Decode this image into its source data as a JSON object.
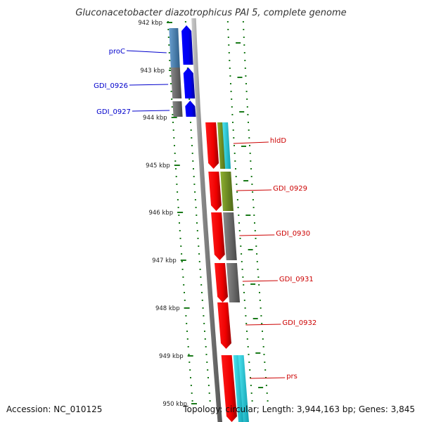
{
  "title": "Gluconacetobacter diazotrophicus PAI 5, complete genome",
  "footer": {
    "accession": "Accession: NC_010125",
    "summary": "Topology: circular; Length: 3,944,163 bp; Genes: 3,845"
  },
  "ticks": [
    "942 kbp",
    "943 kbp",
    "944 kbp",
    "945 kbp",
    "946 kbp",
    "947 kbp",
    "948 kbp",
    "949 kbp",
    "950 kbp"
  ],
  "gene_labels": {
    "forward": [
      "proC",
      "GDI_0926",
      "GDI_0927"
    ],
    "reverse": [
      "hldD",
      "GDI_0929",
      "GDI_0930",
      "GDI_0931",
      "GDI_0932",
      "prs"
    ]
  },
  "colors": {
    "forward_label": "#0000cc",
    "reverse_label": "#cc0000",
    "forward_arrow": "#0000ff",
    "reverse_arrow": "#ee0000",
    "cog_steelblue": "#4a82b4",
    "cog_gray": "#6f6f6f",
    "cog_olive": "#6b8e23",
    "cog_cyan": "#1ec8d8",
    "tick_mark": "#1a7a1a",
    "backbone": "#8a8a8a"
  }
}
